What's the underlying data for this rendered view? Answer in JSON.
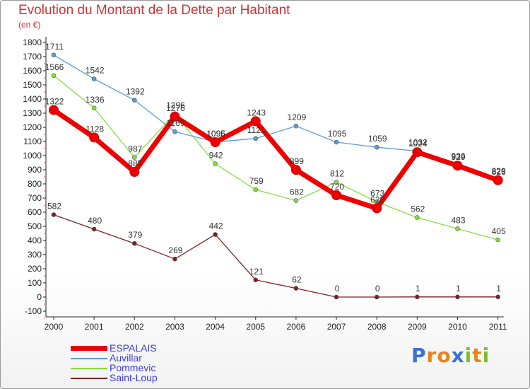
{
  "title": "Evolution du Montant de la Dette par Habitant",
  "subtitle": "(en €)",
  "logo_text": "Proxiti",
  "chart_data": {
    "type": "line",
    "title": "Evolution du Montant de la Dette par Habitant",
    "subtitle": "(en €)",
    "x": [
      "2000",
      "2001",
      "2002",
      "2003",
      "2004",
      "2005",
      "2006",
      "2007",
      "2008",
      "2009",
      "2010",
      "2011"
    ],
    "ylim": [
      -100,
      1800
    ],
    "yticks": [
      -100,
      0,
      100,
      200,
      300,
      400,
      500,
      600,
      700,
      800,
      900,
      1000,
      1100,
      1200,
      1300,
      1400,
      1500,
      1600,
      1700,
      1800
    ],
    "grid": false,
    "legend_position": "bottom-left",
    "series": [
      {
        "name": "ESPALAIS",
        "color": "#ee0000",
        "values": [
          1322,
          1128,
          885,
          1276,
          1095,
          1243,
          899,
          720,
          628,
          1024,
          929,
          826
        ]
      },
      {
        "name": "Auvillar",
        "color": "#5a9bd5",
        "values": [
          1711,
          1542,
          1392,
          1169,
          1096,
          1121,
          1209,
          1095,
          1059,
          1032,
          936,
          829
        ]
      },
      {
        "name": "Pommevic",
        "color": "#88dd44",
        "values": [
          1566,
          1336,
          987,
          1296,
          942,
          759,
          682,
          812,
          673,
          562,
          483,
          405
        ]
      },
      {
        "name": "Saint-Loup",
        "color": "#7a2222",
        "values": [
          582,
          480,
          379,
          269,
          442,
          121,
          62,
          0,
          0,
          1,
          1,
          1
        ]
      }
    ]
  }
}
